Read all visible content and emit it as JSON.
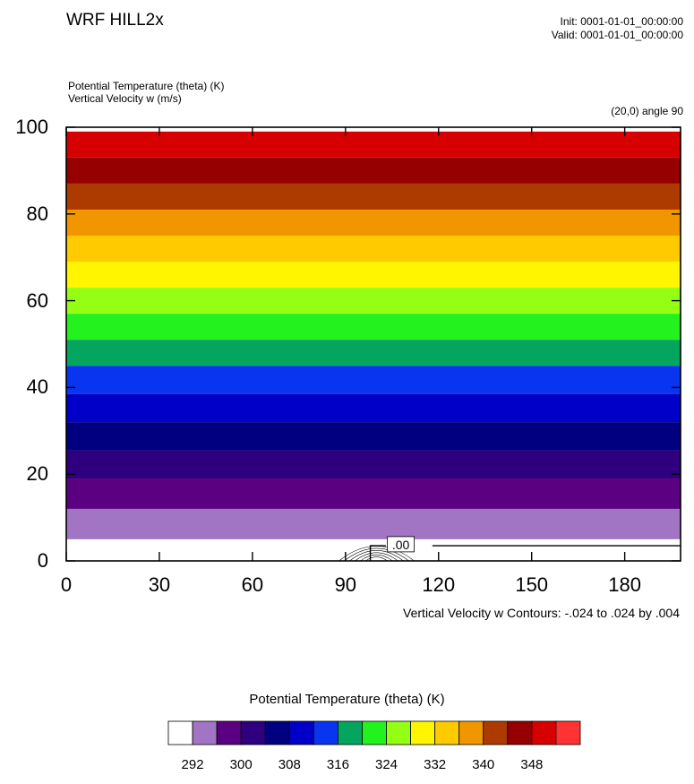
{
  "header": {
    "title": "WRF HILL2x",
    "init": "Init: 0001-01-01_00:00:00",
    "valid": "Valid: 0001-01-01_00:00:00",
    "field1": "Potential Temperature (theta)    (K)",
    "field2": "Vertical Velocity w   (m/s)",
    "cross_section": "(20,0) angle 90"
  },
  "chart_data": {
    "type": "heatmap",
    "x_ticks": [
      0,
      30,
      60,
      90,
      120,
      150,
      180
    ],
    "y_ticks": [
      0,
      20,
      40,
      60,
      80,
      100
    ],
    "xlim": [
      0,
      198
    ],
    "ylim": [
      0,
      100
    ],
    "bands": [
      {
        "y0": 0,
        "y1": 5,
        "color": "#ffffff"
      },
      {
        "y0": 5,
        "y1": 12,
        "color": "#a274c4"
      },
      {
        "y0": 12,
        "y1": 19,
        "color": "#5b0080"
      },
      {
        "y0": 19,
        "y1": 25.5,
        "color": "#2e0080"
      },
      {
        "y0": 25.5,
        "y1": 32,
        "color": "#000080"
      },
      {
        "y0": 32,
        "y1": 38.5,
        "color": "#0000c8"
      },
      {
        "y0": 38.5,
        "y1": 45,
        "color": "#0a35f0"
      },
      {
        "y0": 45,
        "y1": 51,
        "color": "#04a55f"
      },
      {
        "y0": 51,
        "y1": 57,
        "color": "#23f21e"
      },
      {
        "y0": 57,
        "y1": 63,
        "color": "#94ff14"
      },
      {
        "y0": 63,
        "y1": 69,
        "color": "#fff500"
      },
      {
        "y0": 69,
        "y1": 75,
        "color": "#ffca00"
      },
      {
        "y0": 75,
        "y1": 81,
        "color": "#f29600"
      },
      {
        "y0": 81,
        "y1": 87,
        "color": "#ad3b00"
      },
      {
        "y0": 87,
        "y1": 93,
        "color": "#960000"
      },
      {
        "y0": 93,
        "y1": 99,
        "color": "#d70000"
      }
    ],
    "contour_label": ".00",
    "contour_caption": "Vertical Velocity w Contours: -.024 to .024 by .004",
    "colorbar": {
      "title": "Potential Temperature (theta)    (K)",
      "colors": [
        "#ffffff",
        "#a274c4",
        "#5b0080",
        "#2e0080",
        "#000080",
        "#0000c8",
        "#0a35f0",
        "#04a55f",
        "#23f21e",
        "#94ff14",
        "#fff500",
        "#ffca00",
        "#f29600",
        "#ad3b00",
        "#960000",
        "#d70000",
        "#ff3333"
      ],
      "labels": [
        "292",
        "300",
        "308",
        "316",
        "324",
        "332",
        "340",
        "348"
      ]
    }
  }
}
